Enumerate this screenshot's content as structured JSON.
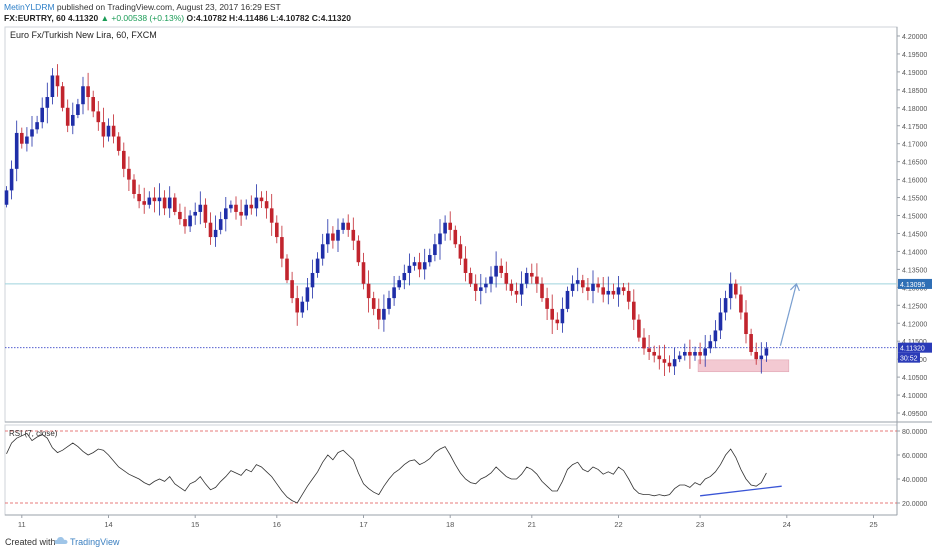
{
  "header": {
    "author": "MetinYLDRM",
    "published": "published on TradingView.com, August 23, 2017 16:29 EST",
    "symbol": "FX:EURTRY, 60",
    "close_val": "4.11320",
    "change": "▲ +0.00538 (+0.13%)",
    "ohlc": "O:4.10782 H:4.11486 L:4.10782 C:4.11320"
  },
  "footer": {
    "created_with": "Created with",
    "brand": "TradingView"
  },
  "colors": {
    "up": "#1f2ea8",
    "down": "#c1242d",
    "rsi_line": "#333333",
    "divergence": "#3a55d6",
    "arrow": "#7a9fd0",
    "level": "#9fd3de",
    "current": "#3a46c8",
    "rsi_band": "#e05050",
    "zone": "#f3c9d2"
  },
  "chart_data": [
    {
      "type": "candlestick",
      "title": "Euro Fx/Turkish New Lira, 60, FXCM",
      "ylim": [
        4.0925,
        4.2025
      ],
      "y_ticks": [
        "4.20000",
        "4.19500",
        "4.19000",
        "4.18500",
        "4.18000",
        "4.17500",
        "4.17000",
        "4.16500",
        "4.16000",
        "4.15500",
        "4.15000",
        "4.14500",
        "4.14000",
        "4.13500",
        "4.13000",
        "4.12500",
        "4.12000",
        "4.11500",
        "4.11000",
        "4.10500",
        "4.10000",
        "4.09500"
      ],
      "x_ticks": [
        {
          "label": "11",
          "i": 3
        },
        {
          "label": "14",
          "i": 20
        },
        {
          "label": "15",
          "i": 37
        },
        {
          "label": "16",
          "i": 53
        },
        {
          "label": "17",
          "i": 70
        },
        {
          "label": "18",
          "i": 87
        },
        {
          "label": "21",
          "i": 103
        },
        {
          "label": "22",
          "i": 120
        },
        {
          "label": "23",
          "i": 136
        },
        {
          "label": "24",
          "i": 153
        },
        {
          "label": "25",
          "i": 170
        }
      ],
      "close_path": [
        4.157,
        4.163,
        4.173,
        4.17,
        4.172,
        4.174,
        4.176,
        4.18,
        4.183,
        4.189,
        4.186,
        4.18,
        4.175,
        4.178,
        4.181,
        4.186,
        4.183,
        4.179,
        4.176,
        4.172,
        4.175,
        4.172,
        4.168,
        4.163,
        4.16,
        4.156,
        4.154,
        4.153,
        4.155,
        4.154,
        4.155,
        4.152,
        4.155,
        4.151,
        4.149,
        4.147,
        4.15,
        4.151,
        4.153,
        4.148,
        4.144,
        4.146,
        4.149,
        4.152,
        4.153,
        4.151,
        4.15,
        4.153,
        4.152,
        4.155,
        4.154,
        4.152,
        4.148,
        4.144,
        4.138,
        4.132,
        4.127,
        4.123,
        4.126,
        4.13,
        4.134,
        4.138,
        4.142,
        4.145,
        4.143,
        4.146,
        4.148,
        4.146,
        4.143,
        4.137,
        4.131,
        4.127,
        4.124,
        4.121,
        4.124,
        4.127,
        4.13,
        4.132,
        4.134,
        4.136,
        4.137,
        4.135,
        4.137,
        4.139,
        4.142,
        4.145,
        4.148,
        4.146,
        4.142,
        4.138,
        4.134,
        4.131,
        4.129,
        4.13,
        4.131,
        4.133,
        4.136,
        4.134,
        4.131,
        4.129,
        4.128,
        4.131,
        4.134,
        4.133,
        4.131,
        4.127,
        4.124,
        4.121,
        4.12,
        4.124,
        4.129,
        4.131,
        4.132,
        4.13,
        4.129,
        4.131,
        4.13,
        4.128,
        4.129,
        4.128,
        4.13,
        4.129,
        4.126,
        4.121,
        4.116,
        4.113,
        4.112,
        4.111,
        4.11,
        4.109,
        4.108,
        4.11,
        4.111,
        4.112,
        4.111,
        4.112,
        4.111,
        4.113,
        4.115,
        4.118,
        4.123,
        4.127,
        4.131,
        4.128,
        4.123,
        4.117,
        4.112,
        4.11,
        4.111,
        4.113
      ],
      "current_price": "4.11320",
      "current_countdown": "30:52",
      "level_price": "4.13095",
      "level_value": 4.13095
    },
    {
      "type": "line",
      "title": "RSI (7, close)",
      "ylim": [
        10,
        85
      ],
      "y_ticks": [
        "80.0000",
        "60.0000",
        "40.0000",
        "20.0000"
      ],
      "bands": [
        80,
        20
      ],
      "values": [
        61,
        70,
        74,
        76,
        78,
        72,
        75,
        77,
        74,
        66,
        62,
        64,
        67,
        70,
        67,
        63,
        60,
        62,
        65,
        64,
        60,
        55,
        50,
        47,
        44,
        42,
        40,
        37,
        35,
        38,
        40,
        38,
        42,
        36,
        33,
        30,
        36,
        38,
        42,
        36,
        31,
        33,
        38,
        42,
        47,
        45,
        43,
        48,
        46,
        52,
        50,
        46,
        42,
        36,
        30,
        25,
        22,
        20,
        27,
        34,
        40,
        46,
        54,
        60,
        56,
        62,
        64,
        60,
        56,
        45,
        36,
        32,
        29,
        27,
        34,
        40,
        45,
        48,
        52,
        55,
        56,
        52,
        54,
        57,
        62,
        65,
        67,
        60,
        52,
        45,
        40,
        37,
        36,
        40,
        42,
        45,
        50,
        46,
        42,
        40,
        40,
        44,
        50,
        48,
        44,
        38,
        34,
        30,
        30,
        38,
        48,
        52,
        54,
        48,
        46,
        50,
        48,
        44,
        46,
        44,
        50,
        47,
        40,
        32,
        28,
        27,
        27,
        26,
        27,
        26,
        27,
        32,
        35,
        35,
        33,
        37,
        35,
        40,
        42,
        46,
        52,
        60,
        65,
        58,
        48,
        40,
        35,
        34,
        37,
        45
      ]
    }
  ]
}
